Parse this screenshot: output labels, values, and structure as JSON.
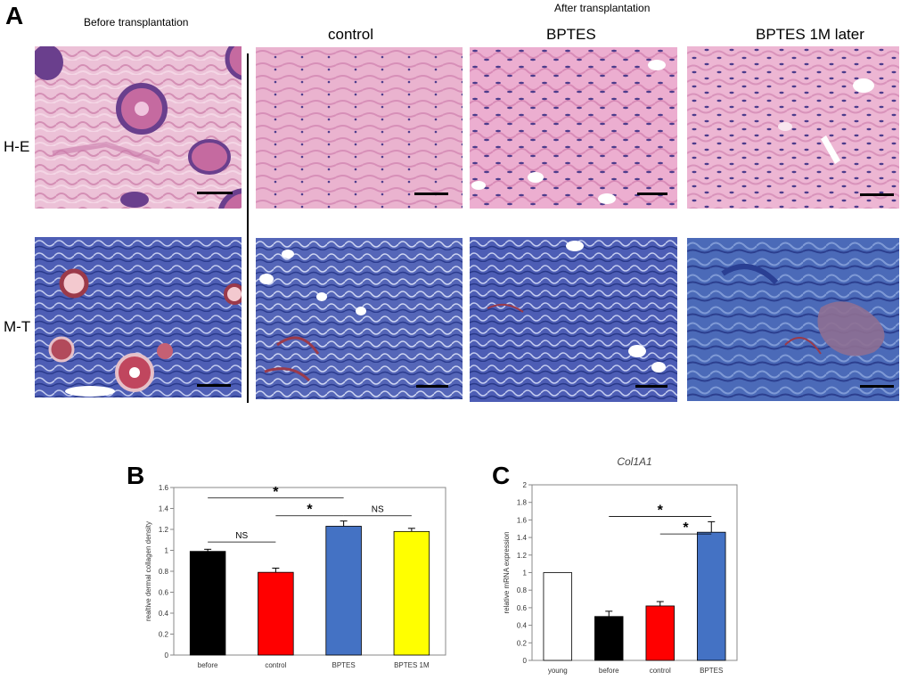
{
  "figure": {
    "panel_a": {
      "letter": "A",
      "before_header": "Before transplantation",
      "after_header": "After transplantation",
      "group_headers": [
        "control",
        "BPTES",
        "BPTES 1M later"
      ],
      "row_labels": [
        "H-E",
        "M-T"
      ]
    },
    "panel_b": {
      "letter": "B"
    },
    "panel_c": {
      "letter": "C"
    }
  },
  "colors": {
    "he_background": "#e9b3cd",
    "he_stain_dark": "#5b3f8f",
    "mt_background": "#4f5fb3",
    "mt_red": "#9b3a4a"
  },
  "chart_data": [
    {
      "type": "bar",
      "title": "",
      "xlabel": "",
      "ylabel": "realtive dermal collagen density",
      "categories": [
        "before",
        "control",
        "BPTES",
        "BPTES 1M"
      ],
      "values": [
        0.99,
        0.79,
        1.23,
        1.18
      ],
      "errors": [
        0.02,
        0.04,
        0.05,
        0.03
      ],
      "colors": [
        "#000000",
        "#ff0000",
        "#4472c4",
        "#ffff00"
      ],
      "ylim": [
        0,
        1.6
      ],
      "yticks": [
        "0",
        "0.2",
        "0.4",
        "0.6",
        "0.8",
        "1",
        "1.2",
        "1.4",
        "1.6"
      ],
      "grid": false,
      "annotations": [
        {
          "label": "*",
          "from": "before",
          "to": "BPTES",
          "y": 1.5
        },
        {
          "label": "*",
          "from": "control",
          "to": "BPTES",
          "y": 1.33
        },
        {
          "label": "NS",
          "from": "before",
          "to": "control",
          "y": 1.08
        },
        {
          "label": "NS",
          "from": "BPTES",
          "to": "BPTES 1M",
          "y": 1.33
        }
      ]
    },
    {
      "type": "bar",
      "title": "Col1A1",
      "xlabel": "",
      "ylabel": "relative mRNA expression",
      "categories": [
        "young",
        "before",
        "control",
        "BPTES"
      ],
      "values": [
        1.0,
        0.5,
        0.62,
        1.46
      ],
      "errors": [
        0.0,
        0.06,
        0.05,
        0.12
      ],
      "colors": [
        "#ffffff",
        "#000000",
        "#ff0000",
        "#4472c4"
      ],
      "ylim": [
        0,
        2
      ],
      "yticks": [
        "0",
        "0.2",
        "0.4",
        "0.6",
        "0.8",
        "1",
        "1.2",
        "1.4",
        "1.6",
        "1.8",
        "2"
      ],
      "grid": false,
      "annotations": [
        {
          "label": "*",
          "from": "before",
          "to": "BPTES",
          "y": 1.64
        },
        {
          "label": "*",
          "from": "control",
          "to": "BPTES",
          "y": 1.44
        }
      ]
    }
  ]
}
